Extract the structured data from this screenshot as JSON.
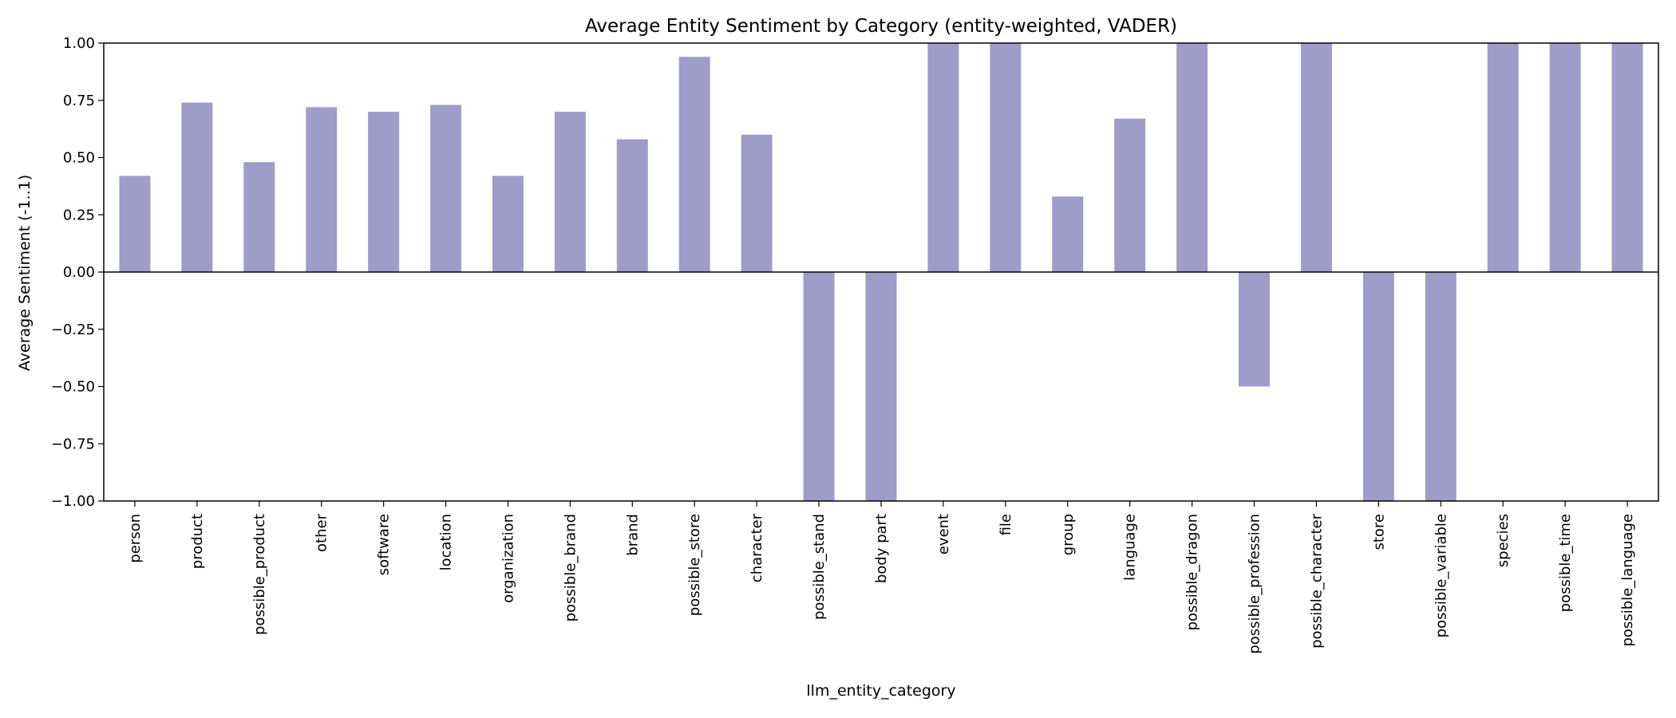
{
  "chart_data": {
    "type": "bar",
    "title": "Average Entity Sentiment by Category (entity-weighted, VADER)",
    "xlabel": "llm_entity_category",
    "ylabel": "Average Sentiment (-1..1)",
    "ylim": [
      -1.0,
      1.0
    ],
    "yticks": [
      "−1.00",
      "−0.75",
      "−0.50",
      "−0.25",
      "0.00",
      "0.25",
      "0.50",
      "0.75",
      "1.00"
    ],
    "ytick_values": [
      -1.0,
      -0.75,
      -0.5,
      -0.25,
      0.0,
      0.25,
      0.5,
      0.75,
      1.0
    ],
    "bar_color": "#9e9cc9",
    "grid": false,
    "legend": "none",
    "categories": [
      "person",
      "product",
      "possible_product",
      "other",
      "software",
      "location",
      "organization",
      "possible_brand",
      "brand",
      "possible_store",
      "character",
      "possible_stand",
      "body part",
      "event",
      "file",
      "group",
      "language",
      "possible_dragon",
      "possible_profession",
      "possible_character",
      "store",
      "possible_variable",
      "species",
      "possible_time",
      "possible_language"
    ],
    "values": [
      0.42,
      0.74,
      0.48,
      0.72,
      0.7,
      0.73,
      0.42,
      0.7,
      0.58,
      0.94,
      0.6,
      -1.0,
      -1.0,
      1.0,
      1.0,
      0.33,
      0.67,
      1.0,
      -0.5,
      1.0,
      -1.0,
      -1.0,
      1.0,
      1.0,
      1.0
    ]
  }
}
